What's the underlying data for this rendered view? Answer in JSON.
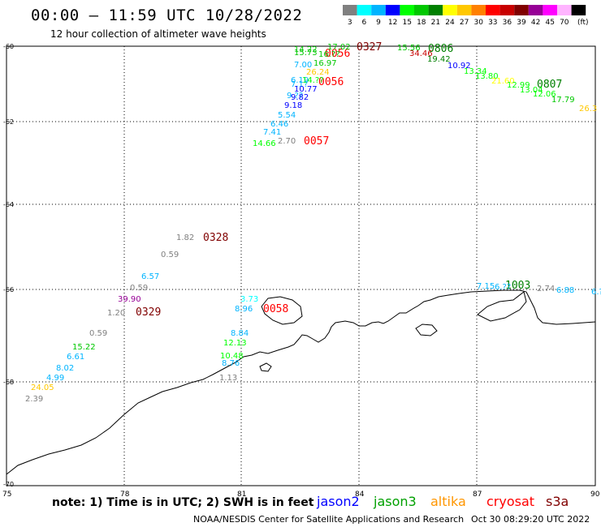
{
  "header": {
    "title": "00:00 — 11:59 UTC 10/28/2022",
    "subtitle": "12 hour collection of altimeter wave heights"
  },
  "legend": {
    "unit_label": "(ft)",
    "scale": [
      {
        "value": "3",
        "color": "#808080"
      },
      {
        "value": "6",
        "color": "#00ffff"
      },
      {
        "value": "9",
        "color": "#00b4ff"
      },
      {
        "value": "12",
        "color": "#0000ff"
      },
      {
        "value": "15",
        "color": "#00ff00"
      },
      {
        "value": "18",
        "color": "#00c800"
      },
      {
        "value": "21",
        "color": "#008000"
      },
      {
        "value": "24",
        "color": "#ffff00"
      },
      {
        "value": "27",
        "color": "#ffc800"
      },
      {
        "value": "30",
        "color": "#ff8000"
      },
      {
        "value": "33",
        "color": "#ff0000"
      },
      {
        "value": "36",
        "color": "#c80000"
      },
      {
        "value": "39",
        "color": "#800000"
      },
      {
        "value": "42",
        "color": "#960096"
      },
      {
        "value": "45",
        "color": "#ff00ff"
      },
      {
        "value": "70",
        "color": "#ffb4ff"
      },
      {
        "value": "",
        "color": "#000000"
      }
    ]
  },
  "axes": {
    "longitude_labels": [
      "75",
      "78",
      "81",
      "84",
      "87",
      "90"
    ],
    "latitude_labels": [
      "-60",
      "-62",
      "-64",
      "-66",
      "-68",
      "-70"
    ]
  },
  "footer": {
    "note": "note: 1) Time is in UTC; 2) SWH is in feet",
    "missions": [
      {
        "name": "jason2",
        "color": "#0000ff"
      },
      {
        "name": "jason3",
        "color": "#00a000"
      },
      {
        "name": "altika",
        "color": "#ff9600"
      },
      {
        "name": "cryosat",
        "color": "#ff0000"
      },
      {
        "name": "s3a",
        "color": "#800000"
      }
    ],
    "credit": "NOAA/NESDIS Center for Satellite Applications and Research",
    "generated": "Oct 30 08:29:20 UTC 2022"
  },
  "pass_times": [
    {
      "label": "0327",
      "color": "#800000"
    },
    {
      "label": "0806",
      "color": "#008000"
    },
    {
      "label": "0056",
      "color": "#ff0000"
    },
    {
      "label": "0056",
      "color": "#ff0000"
    },
    {
      "label": "0807",
      "color": "#008000"
    },
    {
      "label": "0057",
      "color": "#ff0000"
    },
    {
      "label": "0328",
      "color": "#800000"
    },
    {
      "label": "0329",
      "color": "#800000"
    },
    {
      "label": "0058",
      "color": "#ff0000"
    },
    {
      "label": "1003",
      "color": "#008000"
    }
  ],
  "wave_heights": [
    {
      "value": "14.22",
      "color": "#00c800"
    },
    {
      "value": "15.73",
      "color": "#00c800"
    },
    {
      "value": "17.02",
      "color": "#00c800"
    },
    {
      "value": "16.??",
      "color": "#00c800"
    },
    {
      "value": "16.97",
      "color": "#00c800"
    },
    {
      "value": "7.00",
      "color": "#00b4ff"
    },
    {
      "value": "26.24",
      "color": "#ffc800"
    },
    {
      "value": "6.19",
      "color": "#00b4ff"
    },
    {
      "value": "14.??",
      "color": "#00ff00"
    },
    {
      "value": "7.1?",
      "color": "#00b4ff"
    },
    {
      "value": "10.77",
      "color": "#0000ff"
    },
    {
      "value": "9.??",
      "color": "#00b4ff"
    },
    {
      "value": "9.82",
      "color": "#0000ff"
    },
    {
      "value": "9.18",
      "color": "#0000ff"
    },
    {
      "value": "5.54",
      "color": "#00b4ff"
    },
    {
      "value": "6.46",
      "color": "#00b4ff"
    },
    {
      "value": "7.41",
      "color": "#00b4ff"
    },
    {
      "value": "14.66",
      "color": "#00ff00"
    },
    {
      "value": "2.70",
      "color": "#808080"
    },
    {
      "value": "15.56",
      "color": "#00c800"
    },
    {
      "value": "34.46",
      "color": "#c80000"
    },
    {
      "value": "19.42",
      "color": "#008000"
    },
    {
      "value": "10.92",
      "color": "#0000ff"
    },
    {
      "value": "13.34",
      "color": "#00ff00"
    },
    {
      "value": "13.80",
      "color": "#00ff00"
    },
    {
      "value": "21.60",
      "color": "#ffff00"
    },
    {
      "value": "12.99",
      "color": "#00ff00"
    },
    {
      "value": "13.04",
      "color": "#00ff00"
    },
    {
      "value": "12.06",
      "color": "#00ff00"
    },
    {
      "value": "17.79",
      "color": "#00c800"
    },
    {
      "value": "26.3",
      "color": "#ffc800"
    },
    {
      "value": "1.82",
      "color": "#808080"
    },
    {
      "value": "0.59",
      "color": "#808080"
    },
    {
      "value": "6.57",
      "color": "#00b4ff"
    },
    {
      "value": "0.59",
      "color": "#808080"
    },
    {
      "value": "39.90",
      "color": "#960096"
    },
    {
      "value": "1.20",
      "color": "#808080"
    },
    {
      "value": "0.59",
      "color": "#808080"
    },
    {
      "value": "15.22",
      "color": "#00c800"
    },
    {
      "value": "6.61",
      "color": "#00b4ff"
    },
    {
      "value": "8.02",
      "color": "#00b4ff"
    },
    {
      "value": "4.99",
      "color": "#00b4ff"
    },
    {
      "value": "24.05",
      "color": "#ffc800"
    },
    {
      "value": "2.39",
      "color": "#808080"
    },
    {
      "value": "3.73",
      "color": "#00ffff"
    },
    {
      "value": "8.96",
      "color": "#00b4ff"
    },
    {
      "value": "8.84",
      "color": "#00b4ff"
    },
    {
      "value": "12.13",
      "color": "#00ff00"
    },
    {
      "value": "10.48",
      "color": "#00ff00"
    },
    {
      "value": "8.76",
      "color": "#00b4ff"
    },
    {
      "value": "1.13",
      "color": "#808080"
    },
    {
      "value": "7.15",
      "color": "#00b4ff"
    },
    {
      "value": "6.??",
      "color": "#00b4ff"
    },
    {
      "value": "2.74",
      "color": "#808080"
    },
    {
      "value": "6.88",
      "color": "#00b4ff"
    },
    {
      "value": "6.?",
      "color": "#00b4ff"
    }
  ]
}
